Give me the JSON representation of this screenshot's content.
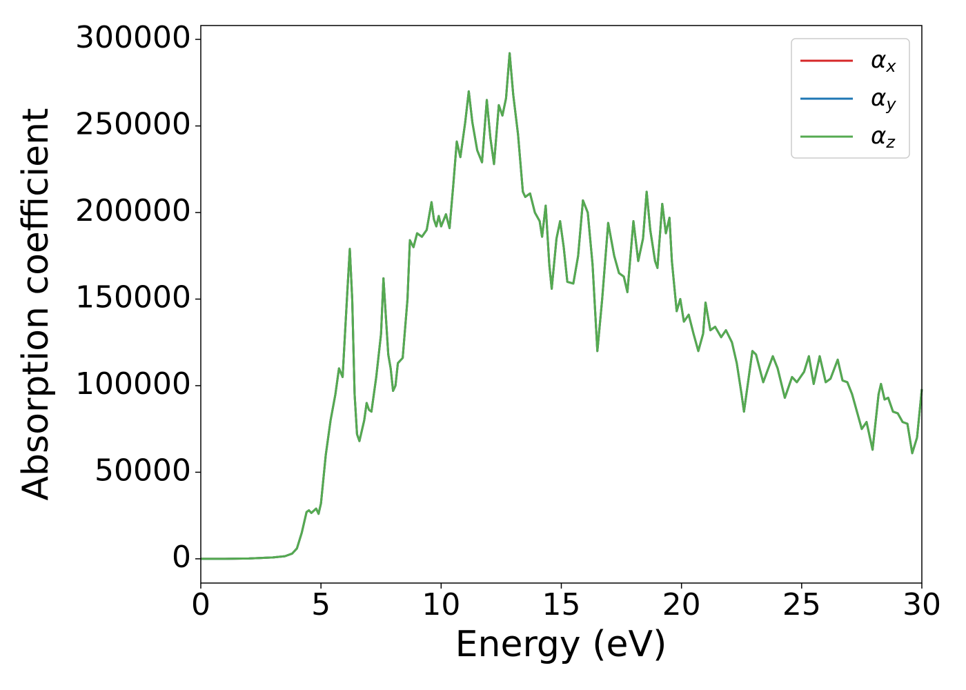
{
  "chart_data": {
    "type": "line",
    "xlabel": "Energy (eV)",
    "ylabel": "Absorption coefficient",
    "x": [
      0,
      1,
      2,
      3,
      3.5,
      3.8,
      4.0,
      4.2,
      4.4,
      4.5,
      4.6,
      4.8,
      4.9,
      5.0,
      5.2,
      5.4,
      5.6,
      5.75,
      5.9,
      6.0,
      6.1,
      6.2,
      6.3,
      6.4,
      6.5,
      6.6,
      6.8,
      6.9,
      7.0,
      7.1,
      7.3,
      7.5,
      7.6,
      7.7,
      7.8,
      7.9,
      8.0,
      8.1,
      8.2,
      8.4,
      8.6,
      8.7,
      8.85,
      9.0,
      9.2,
      9.4,
      9.6,
      9.7,
      9.8,
      9.9,
      10.0,
      10.2,
      10.35,
      10.5,
      10.65,
      10.8,
      11.0,
      11.15,
      11.3,
      11.5,
      11.7,
      11.9,
      12.05,
      12.2,
      12.4,
      12.55,
      12.7,
      12.85,
      13.0,
      13.2,
      13.4,
      13.5,
      13.7,
      13.9,
      14.1,
      14.2,
      14.35,
      14.5,
      14.6,
      14.8,
      14.95,
      15.1,
      15.25,
      15.5,
      15.7,
      15.9,
      16.1,
      16.3,
      16.5,
      16.7,
      16.95,
      17.2,
      17.4,
      17.6,
      17.75,
      18.0,
      18.2,
      18.4,
      18.55,
      18.7,
      18.9,
      19.0,
      19.2,
      19.35,
      19.5,
      19.6,
      19.8,
      19.95,
      20.1,
      20.3,
      20.5,
      20.7,
      20.9,
      21.0,
      21.2,
      21.4,
      21.65,
      21.85,
      22.1,
      22.3,
      22.5,
      22.6,
      22.75,
      22.95,
      23.1,
      23.4,
      23.8,
      24.0,
      24.3,
      24.6,
      24.8,
      25.1,
      25.3,
      25.5,
      25.75,
      26.0,
      26.2,
      26.5,
      26.7,
      26.9,
      27.1,
      27.3,
      27.5,
      27.7,
      27.95,
      28.2,
      28.3,
      28.45,
      28.6,
      28.8,
      29.0,
      29.2,
      29.4,
      29.6,
      29.8,
      30
    ],
    "series": [
      {
        "name": "αx",
        "color": "#d62728",
        "values": [
          0,
          0,
          200,
          800,
          1500,
          3000,
          6000,
          15000,
          27000,
          28000,
          26500,
          29000,
          26000,
          32000,
          60000,
          80000,
          95000,
          110000,
          105000,
          130000,
          155000,
          179000,
          150000,
          95000,
          72000,
          68000,
          80000,
          90000,
          86000,
          85000,
          105000,
          130000,
          162000,
          140000,
          118000,
          110000,
          97000,
          100000,
          113000,
          116000,
          150000,
          184000,
          180000,
          188000,
          186000,
          190000,
          206000,
          196000,
          192000,
          198000,
          192000,
          199000,
          191000,
          215000,
          241000,
          232000,
          252000,
          270000,
          252000,
          236000,
          229000,
          265000,
          243000,
          228000,
          262000,
          256000,
          266000,
          292000,
          268000,
          245000,
          212000,
          209000,
          211000,
          200000,
          195000,
          186000,
          204000,
          170000,
          156000,
          185000,
          195000,
          180000,
          160000,
          159000,
          175000,
          207000,
          200000,
          170000,
          120000,
          150000,
          194000,
          175000,
          165000,
          163000,
          154000,
          195000,
          172000,
          185000,
          212000,
          190000,
          172000,
          168000,
          205000,
          188000,
          197000,
          172000,
          143000,
          150000,
          137000,
          141000,
          130000,
          120000,
          130000,
          148000,
          132000,
          134000,
          128000,
          132000,
          125000,
          113000,
          95000,
          85000,
          100000,
          120000,
          118000,
          102000,
          117000,
          110000,
          93000,
          105000,
          102000,
          108000,
          117000,
          101000,
          117000,
          102000,
          104000,
          115000,
          103000,
          102000,
          95000,
          85000,
          75000,
          79000,
          63000,
          95000,
          101000,
          92000,
          93000,
          85000,
          84000,
          79000,
          78000,
          61000,
          70000,
          98000
        ]
      },
      {
        "name": "αy",
        "color": "#1f77b4",
        "values": [
          0,
          0,
          200,
          800,
          1500,
          3000,
          6000,
          15000,
          27000,
          28000,
          26500,
          29000,
          26000,
          32000,
          60000,
          80000,
          95000,
          110000,
          105000,
          130000,
          155000,
          179000,
          150000,
          95000,
          72000,
          68000,
          80000,
          90000,
          86000,
          85000,
          105000,
          130000,
          162000,
          140000,
          118000,
          110000,
          97000,
          100000,
          113000,
          116000,
          150000,
          184000,
          180000,
          188000,
          186000,
          190000,
          206000,
          196000,
          192000,
          198000,
          192000,
          199000,
          191000,
          215000,
          241000,
          232000,
          252000,
          270000,
          252000,
          236000,
          229000,
          265000,
          243000,
          228000,
          262000,
          256000,
          266000,
          292000,
          268000,
          245000,
          212000,
          209000,
          211000,
          200000,
          195000,
          186000,
          204000,
          170000,
          156000,
          185000,
          195000,
          180000,
          160000,
          159000,
          175000,
          207000,
          200000,
          170000,
          120000,
          150000,
          194000,
          175000,
          165000,
          163000,
          154000,
          195000,
          172000,
          185000,
          212000,
          190000,
          172000,
          168000,
          205000,
          188000,
          197000,
          172000,
          143000,
          150000,
          137000,
          141000,
          130000,
          120000,
          130000,
          148000,
          132000,
          134000,
          128000,
          132000,
          125000,
          113000,
          95000,
          85000,
          100000,
          120000,
          118000,
          102000,
          117000,
          110000,
          93000,
          105000,
          102000,
          108000,
          117000,
          101000,
          117000,
          102000,
          104000,
          115000,
          103000,
          102000,
          95000,
          85000,
          75000,
          79000,
          63000,
          95000,
          101000,
          92000,
          93000,
          85000,
          84000,
          79000,
          78000,
          61000,
          70000,
          98000
        ]
      },
      {
        "name": "αz",
        "color": "#55aa50",
        "values": [
          0,
          0,
          200,
          800,
          1500,
          3000,
          6000,
          15000,
          27000,
          28000,
          26500,
          29000,
          26000,
          32000,
          60000,
          80000,
          95000,
          110000,
          105000,
          130000,
          155000,
          179000,
          150000,
          95000,
          72000,
          68000,
          80000,
          90000,
          86000,
          85000,
          105000,
          130000,
          162000,
          140000,
          118000,
          110000,
          97000,
          100000,
          113000,
          116000,
          150000,
          184000,
          180000,
          188000,
          186000,
          190000,
          206000,
          196000,
          192000,
          198000,
          192000,
          199000,
          191000,
          215000,
          241000,
          232000,
          252000,
          270000,
          252000,
          236000,
          229000,
          265000,
          243000,
          228000,
          262000,
          256000,
          266000,
          292000,
          268000,
          245000,
          212000,
          209000,
          211000,
          200000,
          195000,
          186000,
          204000,
          170000,
          156000,
          185000,
          195000,
          180000,
          160000,
          159000,
          175000,
          207000,
          200000,
          170000,
          120000,
          150000,
          194000,
          175000,
          165000,
          163000,
          154000,
          195000,
          172000,
          185000,
          212000,
          190000,
          172000,
          168000,
          205000,
          188000,
          197000,
          172000,
          143000,
          150000,
          137000,
          141000,
          130000,
          120000,
          130000,
          148000,
          132000,
          134000,
          128000,
          132000,
          125000,
          113000,
          95000,
          85000,
          100000,
          120000,
          118000,
          102000,
          117000,
          110000,
          93000,
          105000,
          102000,
          108000,
          117000,
          101000,
          117000,
          102000,
          104000,
          115000,
          103000,
          102000,
          95000,
          85000,
          75000,
          79000,
          63000,
          95000,
          101000,
          92000,
          93000,
          85000,
          84000,
          79000,
          78000,
          61000,
          70000,
          98000
        ]
      }
    ],
    "xlim": [
      0,
      30
    ],
    "ylim": [
      -14000,
      308000
    ],
    "xticks": [
      0,
      5,
      10,
      15,
      20,
      25,
      30
    ],
    "yticks": [
      0,
      50000,
      100000,
      150000,
      200000,
      250000,
      300000
    ],
    "grid": false,
    "legend": "upper right"
  }
}
